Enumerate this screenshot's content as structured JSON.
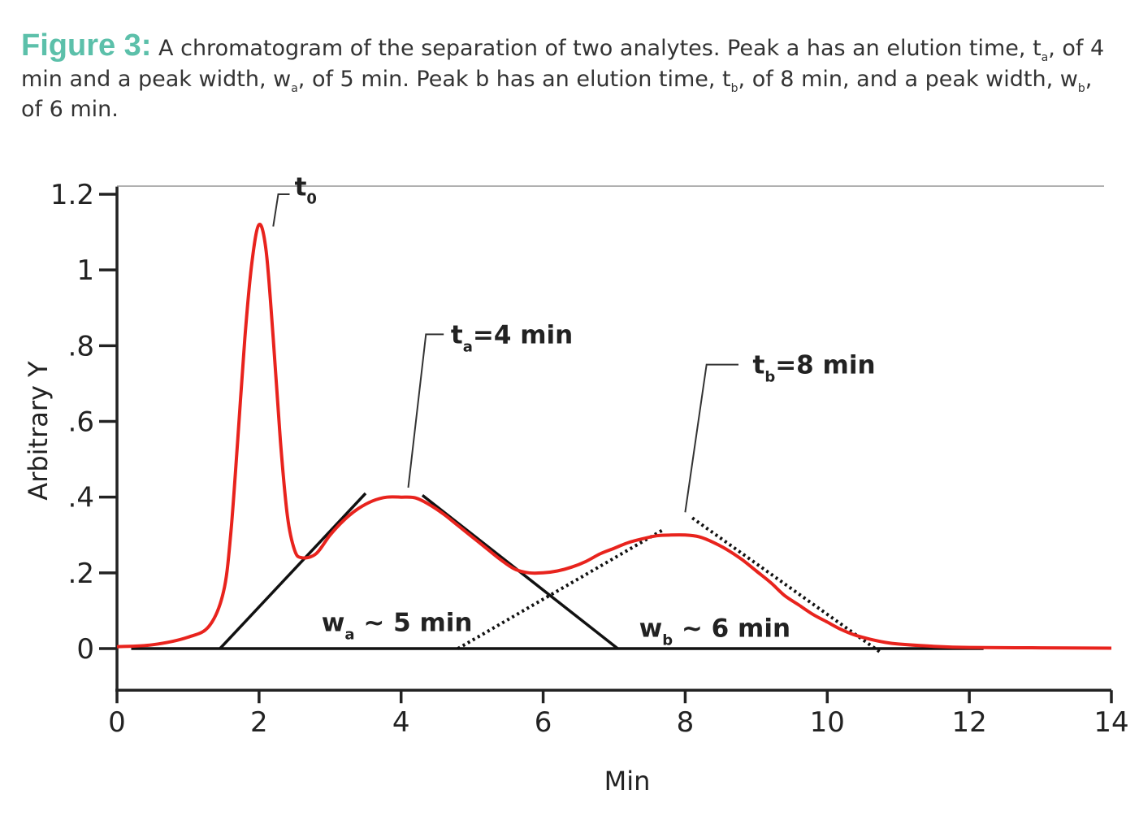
{
  "caption": {
    "label": "Figure 3:",
    "text_html": " A chromatogram of the separation of two analytes. Peak a has an elution time, t<sub>a</sub>, of 4 min and a peak width, w<sub>a</sub>, of 5 min. Peak b has an elution time, t<sub>b</sub>, of 8 min, and a peak width, w<sub>b</sub>, of 6 min."
  },
  "colors": {
    "caption_label": "#5cc0aa",
    "signal": "#e8231d",
    "axis": "#222222",
    "tangent": "#111111",
    "frame": "#b0b0b0",
    "plot_bg": "#ffffff"
  },
  "chart_data": {
    "type": "line",
    "xlabel": "Min",
    "ylabel": "Arbitrary Y",
    "xlim": [
      0,
      14
    ],
    "ylim": [
      -0.11,
      1.22
    ],
    "x_ticks": [
      {
        "value": 0,
        "label": "0"
      },
      {
        "value": 2,
        "label": "2"
      },
      {
        "value": 4,
        "label": "4"
      },
      {
        "value": 6,
        "label": "6"
      },
      {
        "value": 8,
        "label": "8"
      },
      {
        "value": 10,
        "label": "10"
      },
      {
        "value": 12,
        "label": "12"
      },
      {
        "value": 14,
        "label": "14"
      }
    ],
    "y_ticks": [
      {
        "value": 0,
        "label": "0"
      },
      {
        "value": 0.2,
        "label": ".2"
      },
      {
        "value": 0.4,
        "label": ".4"
      },
      {
        "value": 0.6,
        "label": ".6"
      },
      {
        "value": 0.8,
        "label": ".8"
      },
      {
        "value": 1.0,
        "label": "1"
      },
      {
        "value": 1.2,
        "label": "1.2"
      }
    ],
    "grid": false,
    "series": [
      {
        "x": [
          0.0,
          0.5,
          1.0,
          1.3,
          1.5,
          1.6,
          1.7,
          1.8,
          1.9,
          2.0,
          2.1,
          2.2,
          2.3,
          2.4,
          2.5,
          2.6,
          2.8,
          3.0,
          3.2,
          3.4,
          3.6,
          3.8,
          4.0,
          4.2,
          4.4,
          4.6,
          4.8,
          5.0,
          5.2,
          5.4,
          5.6,
          5.8,
          6.0,
          6.2,
          6.4,
          6.6,
          6.8,
          7.0,
          7.2,
          7.4,
          7.6,
          7.8,
          8.0,
          8.2,
          8.4,
          8.6,
          8.8,
          9.0,
          9.2,
          9.4,
          9.6,
          9.8,
          10.0,
          10.2,
          10.4,
          10.6,
          10.8,
          11.0,
          11.5,
          12.0,
          13.0,
          14.0
        ],
        "y": [
          0.005,
          0.01,
          0.03,
          0.06,
          0.15,
          0.3,
          0.55,
          0.82,
          1.02,
          1.12,
          1.05,
          0.82,
          0.55,
          0.35,
          0.26,
          0.24,
          0.25,
          0.3,
          0.34,
          0.37,
          0.39,
          0.4,
          0.4,
          0.398,
          0.38,
          0.355,
          0.325,
          0.295,
          0.265,
          0.235,
          0.21,
          0.2,
          0.2,
          0.205,
          0.215,
          0.23,
          0.25,
          0.265,
          0.28,
          0.29,
          0.298,
          0.3,
          0.3,
          0.295,
          0.28,
          0.26,
          0.235,
          0.205,
          0.175,
          0.14,
          0.115,
          0.09,
          0.07,
          0.05,
          0.035,
          0.025,
          0.017,
          0.012,
          0.006,
          0.003,
          0.002,
          0.001
        ]
      }
    ],
    "tangent_lines": [
      {
        "style": "solid",
        "x": [
          1.45,
          3.5
        ],
        "y": [
          0.0,
          0.41
        ]
      },
      {
        "style": "solid",
        "x": [
          4.3,
          7.05
        ],
        "y": [
          0.405,
          0.0
        ]
      },
      {
        "style": "dotted",
        "x": [
          4.8,
          7.7
        ],
        "y": [
          0.0,
          0.315
        ]
      },
      {
        "style": "dotted",
        "x": [
          8.1,
          10.75
        ],
        "y": [
          0.345,
          -0.01
        ]
      }
    ],
    "baseline": {
      "x": [
        0.2,
        12.2
      ],
      "y": [
        0.0,
        0.0
      ]
    },
    "annotations": [
      {
        "main": "t",
        "sub": "0",
        "rest": "",
        "text_x": 2.5,
        "text_y": 1.22,
        "leader": [
          [
            2.2,
            1.115
          ],
          [
            2.27,
            1.2
          ],
          [
            2.43,
            1.2
          ]
        ]
      },
      {
        "main": "t",
        "sub": "a",
        "rest": "=4 min",
        "text_x": 4.7,
        "text_y": 0.83,
        "leader": [
          [
            4.1,
            0.425
          ],
          [
            4.35,
            0.83
          ],
          [
            4.6,
            0.83
          ]
        ]
      },
      {
        "main": "t",
        "sub": "b",
        "rest": "=8 min",
        "text_x": 8.95,
        "text_y": 0.75,
        "leader": [
          [
            8.0,
            0.36
          ],
          [
            8.3,
            0.75
          ],
          [
            8.75,
            0.75
          ]
        ]
      },
      {
        "main": "w",
        "sub": "a",
        "rest": " ~ 5 min",
        "text_x": 2.88,
        "text_y": 0.07
      },
      {
        "main": "w",
        "sub": "b",
        "rest": " ~ 6 min",
        "text_x": 7.35,
        "text_y": 0.055
      }
    ]
  }
}
